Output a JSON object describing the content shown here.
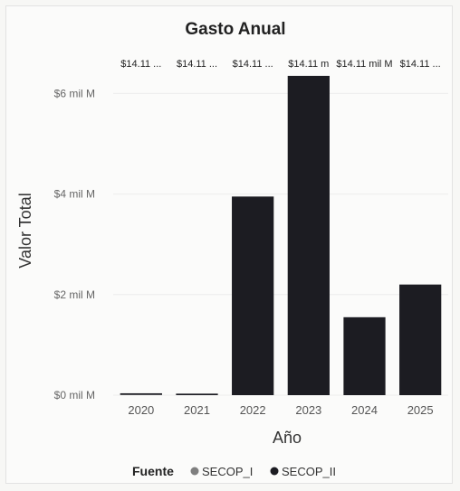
{
  "chart_data": {
    "type": "bar",
    "title": "Gasto Anual",
    "xlabel": "Año",
    "ylabel": "Valor Total",
    "categories": [
      "2020",
      "2021",
      "2022",
      "2023",
      "2024",
      "2025"
    ],
    "series": [
      {
        "name": "SECOP_I",
        "values": [
          0.01,
          0,
          0,
          0,
          0,
          0
        ],
        "color": "#7f7f7f"
      },
      {
        "name": "SECOP_II",
        "values": [
          0.02,
          0.03,
          3.95,
          6.35,
          1.55,
          2.2
        ],
        "color": "#1c1c22"
      }
    ],
    "data_labels": [
      "$14.11 ...",
      "$14.11 ...",
      "$14.11 ...",
      "$14.11 m",
      "$14.11 mil M",
      "$14.11 ..."
    ],
    "y_ticks": [
      {
        "value": 0,
        "label": "$0 mil M"
      },
      {
        "value": 2,
        "label": "$2 mil M"
      },
      {
        "value": 4,
        "label": "$4 mil M"
      },
      {
        "value": 6,
        "label": "$6 mil M"
      }
    ],
    "ylim": [
      0,
      6.6
    ],
    "grid": true,
    "legend": {
      "title": "Fuente",
      "placement": "bottom"
    }
  }
}
